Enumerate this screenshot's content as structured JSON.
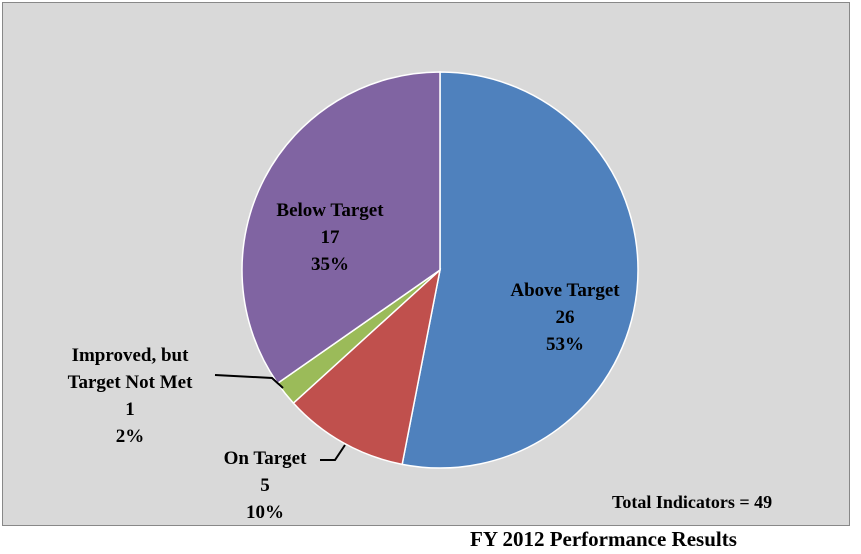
{
  "chart_data": {
    "type": "pie",
    "title": "FY 2012 Performance Results",
    "annotation": "Total Indicators = 49",
    "categories": [
      "Above Target",
      "On Target",
      "Improved, but Target Not Met",
      "Below Target"
    ],
    "values": [
      26,
      5,
      1,
      17
    ],
    "value_labels": [
      "53%",
      "10%",
      "2%",
      "35%"
    ],
    "colors": [
      "#4f81bd",
      "#c0504d",
      "#9bbb59",
      "#8064a2"
    ]
  }
}
